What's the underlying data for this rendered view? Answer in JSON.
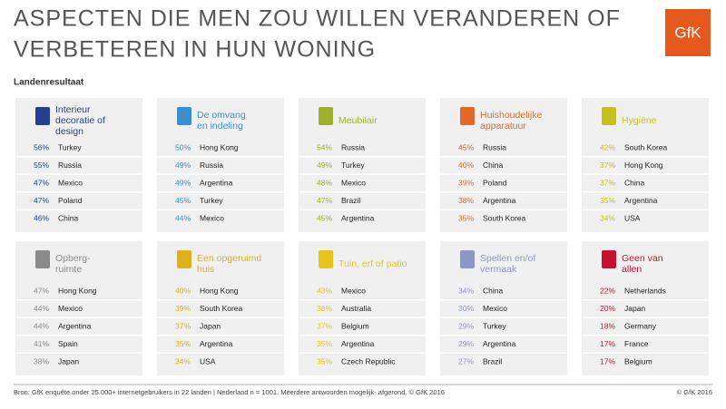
{
  "header": {
    "title_lines": [
      "ASPECTEN DIE MEN ZOU WILLEN VERANDEREN OF",
      "VERBETEREN IN HUN WONING"
    ],
    "logo": "GfK",
    "subtitle": "Landenresultaat"
  },
  "panels": [
    {
      "title_lines": [
        "Interieur",
        "decoratie of",
        "design"
      ],
      "color": "#24418f",
      "rows": [
        [
          "56%",
          "Turkey"
        ],
        [
          "55%",
          "Russia"
        ],
        [
          "47%",
          "Mexico"
        ],
        [
          "47%",
          "Poland"
        ],
        [
          "46%",
          "China"
        ]
      ]
    },
    {
      "title_lines": [
        "De omvang",
        "en indeling"
      ],
      "color": "#3a8fd2",
      "rows": [
        [
          "50%",
          "Hong Kong"
        ],
        [
          "49%",
          "Russia"
        ],
        [
          "49%",
          "Argentina"
        ],
        [
          "45%",
          "Turkey"
        ],
        [
          "44%",
          "Mexico"
        ]
      ]
    },
    {
      "title_lines": [
        "Meubilair"
      ],
      "color": "#9db22a",
      "rows": [
        [
          "54%",
          "Russia"
        ],
        [
          "49%",
          "Turkey"
        ],
        [
          "48%",
          "Mexico"
        ],
        [
          "47%",
          "Brazil"
        ],
        [
          "45%",
          "Argentina"
        ]
      ]
    },
    {
      "title_lines": [
        "Huishoudelijke",
        "apparatuur"
      ],
      "color": "#e2692a",
      "rows": [
        [
          "45%",
          "Russia"
        ],
        [
          "40%",
          "China"
        ],
        [
          "39%",
          "Poland"
        ],
        [
          "38%",
          "Argentina"
        ],
        [
          "35%",
          "South Korea"
        ]
      ]
    },
    {
      "title_lines": [
        "Hygiëne"
      ],
      "color": "#c3c21e",
      "rows": [
        [
          "42%",
          "South Korea"
        ],
        [
          "37%",
          "Hong Kong"
        ],
        [
          "37%",
          "China"
        ],
        [
          "35%",
          "Argentina"
        ],
        [
          "34%",
          "USA"
        ]
      ]
    },
    {
      "title_lines": [
        "Opberg-",
        "ruimte"
      ],
      "color": "#8a8a8a",
      "rows": [
        [
          "47%",
          "Hong Kong"
        ],
        [
          "44%",
          "Mexico"
        ],
        [
          "44%",
          "Argentina"
        ],
        [
          "41%",
          "Spain"
        ],
        [
          "38%",
          "Japan"
        ]
      ]
    },
    {
      "title_lines": [
        "Een opgeruimd",
        "huis"
      ],
      "color": "#dfb01c",
      "rows": [
        [
          "40%",
          "Hong Kong"
        ],
        [
          "39%",
          "South Korea"
        ],
        [
          "37%",
          "Japan"
        ],
        [
          "35%",
          "Argentina"
        ],
        [
          "34%",
          "USA"
        ]
      ]
    },
    {
      "title_lines": [
        "Tuin, erf of patio"
      ],
      "color": "#e9c21c",
      "rows": [
        [
          "43%",
          "Mexico"
        ],
        [
          "38%",
          "Australia"
        ],
        [
          "37%",
          "Belgium"
        ],
        [
          "35%",
          "Argentina"
        ],
        [
          "35%",
          "Czech Republic"
        ]
      ]
    },
    {
      "title_lines": [
        "Spellen en/of",
        "vermaak"
      ],
      "color": "#8f95c6",
      "rows": [
        [
          "34%",
          "China"
        ],
        [
          "30%",
          "Mexico"
        ],
        [
          "29%",
          "Turkey"
        ],
        [
          "29%",
          "Argentina"
        ],
        [
          "27%",
          "Brazil"
        ]
      ]
    },
    {
      "title_lines": [
        "Geen van",
        "allen"
      ],
      "color": "#c8102e",
      "rows": [
        [
          "22%",
          "Netherlands"
        ],
        [
          "20%",
          "Japan"
        ],
        [
          "18%",
          "Germany"
        ],
        [
          "17%",
          "France"
        ],
        [
          "17%",
          "Belgium"
        ]
      ]
    }
  ],
  "footer": {
    "source": "Bron: GfK enquête onder 25.000+ internetgebruikers in 22 landen | Nederland n = 1001. Meerdere antwoorden mogelijk- afgerond. © GfK 2016",
    "copyright": "© GfK 2016"
  }
}
